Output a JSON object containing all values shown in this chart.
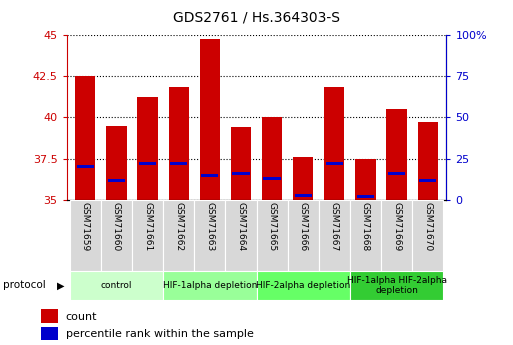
{
  "title": "GDS2761 / Hs.364303-S",
  "samples": [
    "GSM71659",
    "GSM71660",
    "GSM71661",
    "GSM71662",
    "GSM71663",
    "GSM71664",
    "GSM71665",
    "GSM71666",
    "GSM71667",
    "GSM71668",
    "GSM71669",
    "GSM71670"
  ],
  "counts": [
    42.5,
    39.5,
    41.2,
    41.8,
    44.7,
    39.4,
    40.0,
    37.6,
    41.8,
    37.5,
    40.5,
    39.7
  ],
  "percentile_ranks": [
    37.0,
    36.2,
    37.2,
    37.2,
    36.5,
    36.6,
    36.3,
    35.3,
    37.2,
    35.2,
    36.6,
    36.2
  ],
  "bar_color": "#cc0000",
  "blue_color": "#0000cc",
  "y_min": 35,
  "y_max": 45,
  "y_ticks": [
    35,
    37.5,
    40,
    42.5,
    45
  ],
  "y_right_ticks": [
    0,
    25,
    50,
    75,
    100
  ],
  "y_right_labels": [
    "0",
    "25",
    "50",
    "75",
    "100%"
  ],
  "protocol_groups": [
    {
      "label": "control",
      "start": 0,
      "end": 3,
      "color": "#ccffcc"
    },
    {
      "label": "HIF-1alpha depletion",
      "start": 3,
      "end": 6,
      "color": "#99ff99"
    },
    {
      "label": "HIF-2alpha depletion",
      "start": 6,
      "end": 9,
      "color": "#66ff66"
    },
    {
      "label": "HIF-1alpha HIF-2alpha\ndepletion",
      "start": 9,
      "end": 12,
      "color": "#33cc33"
    }
  ],
  "xlabel_color": "#cc0000",
  "ylabel_right_color": "#0000cc",
  "tick_label_bg": "#d8d8d8"
}
